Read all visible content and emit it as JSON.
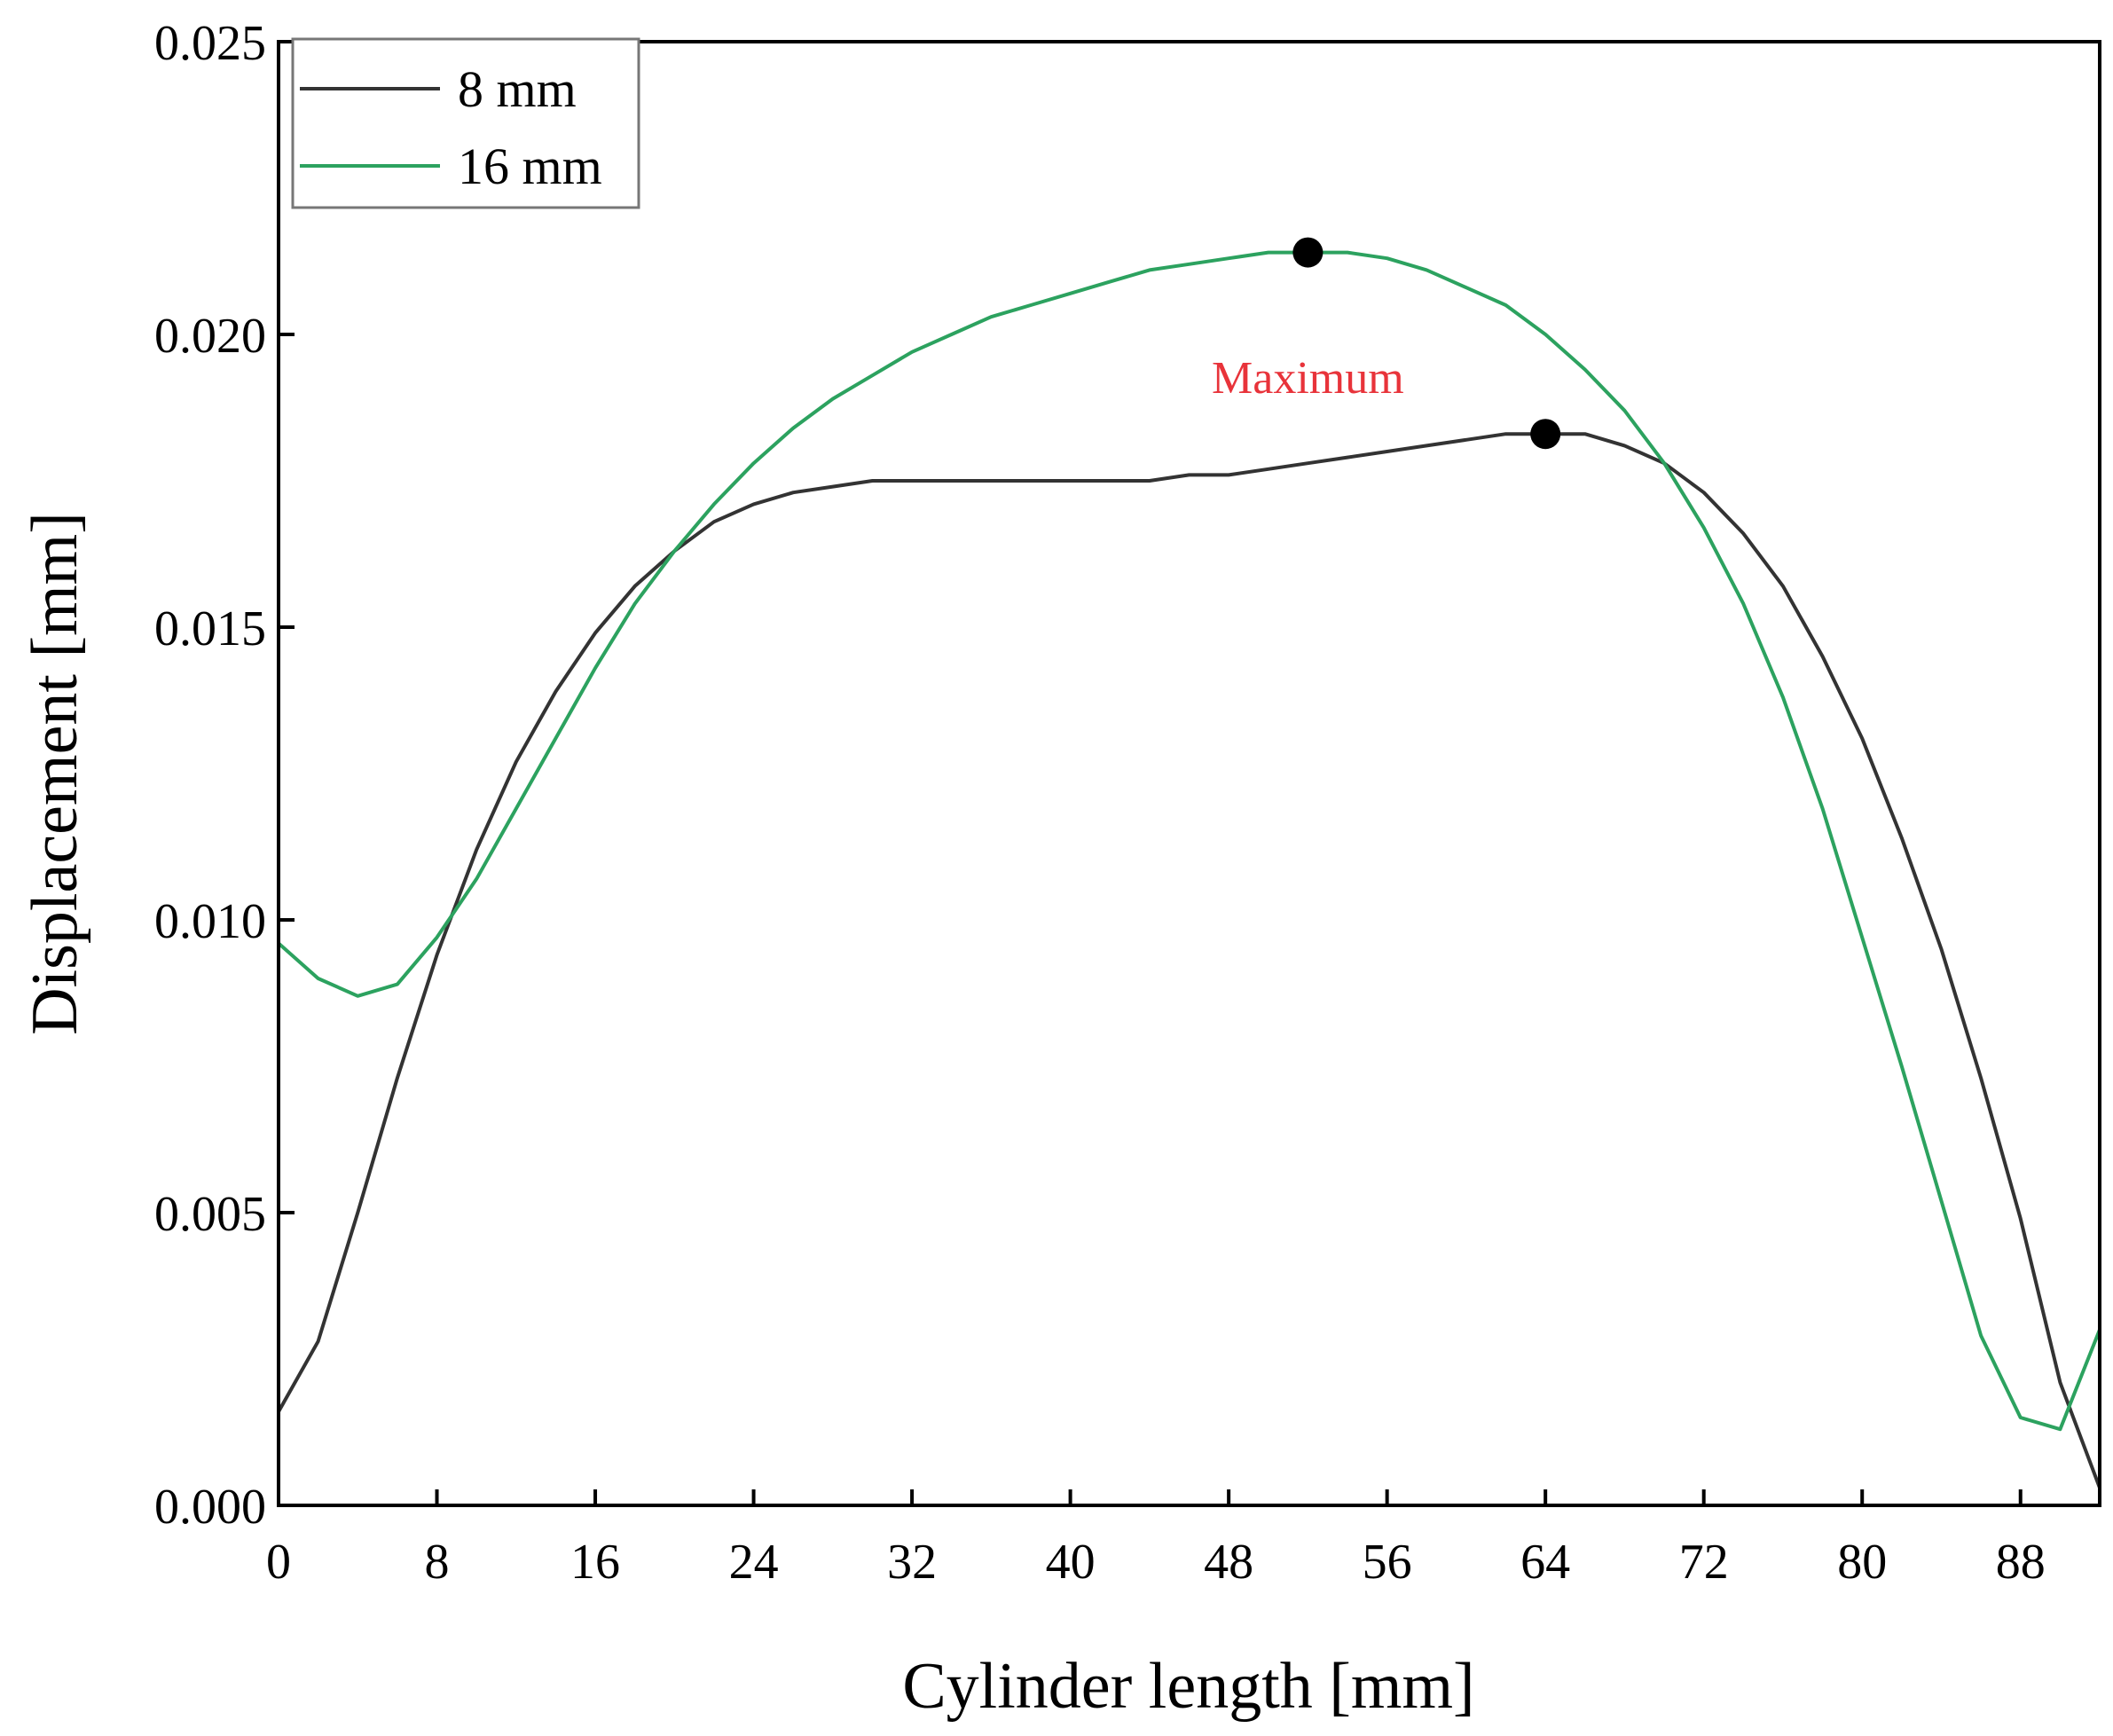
{
  "chart_data": {
    "type": "line",
    "title": "",
    "xlabel": "Cylinder length [mm]",
    "ylabel": "Displacement [mm]",
    "xlim": [
      0,
      92
    ],
    "ylim": [
      0,
      0.025
    ],
    "xticks": [
      0,
      8,
      16,
      24,
      32,
      40,
      48,
      56,
      64,
      72,
      80,
      88
    ],
    "yticks": [
      0,
      0.005,
      0.01,
      0.015,
      0.02,
      0.025
    ],
    "ytick_labels": [
      "0.000",
      "0.005",
      "0.010",
      "0.015",
      "0.020",
      "0.025"
    ],
    "grid": false,
    "legend_position": "top-left",
    "series": [
      {
        "name": "8 mm",
        "color": "#333333",
        "x": [
          0,
          2,
          4,
          6,
          8,
          10,
          12,
          14,
          16,
          18,
          20,
          22,
          24,
          26,
          28,
          30,
          32,
          34,
          36,
          38,
          40,
          42,
          44,
          46,
          48,
          50,
          52,
          54,
          56,
          58,
          60,
          62,
          64,
          66,
          68,
          70,
          72,
          74,
          76,
          78,
          80,
          82,
          84,
          86,
          88,
          90,
          92
        ],
        "y": [
          0.0016,
          0.0028,
          0.005,
          0.0073,
          0.0094,
          0.0112,
          0.0127,
          0.0139,
          0.0149,
          0.0157,
          0.0163,
          0.0168,
          0.0171,
          0.0173,
          0.0174,
          0.0175,
          0.0175,
          0.0175,
          0.0175,
          0.0175,
          0.0175,
          0.0175,
          0.0175,
          0.0176,
          0.0176,
          0.0177,
          0.0178,
          0.0179,
          0.018,
          0.0181,
          0.0182,
          0.0183,
          0.0183,
          0.0183,
          0.0181,
          0.0178,
          0.0173,
          0.0166,
          0.0157,
          0.0145,
          0.0131,
          0.0114,
          0.0095,
          0.0073,
          0.0049,
          0.0021,
          0.0003
        ]
      },
      {
        "name": "16 mm",
        "color": "#2ca25f",
        "x": [
          0,
          2,
          4,
          6,
          8,
          10,
          12,
          14,
          16,
          18,
          20,
          22,
          24,
          26,
          28,
          30,
          32,
          34,
          36,
          38,
          40,
          42,
          44,
          46,
          48,
          50,
          52,
          54,
          56,
          58,
          60,
          62,
          64,
          66,
          68,
          70,
          72,
          74,
          76,
          78,
          80,
          82,
          84,
          86,
          88,
          90,
          92
        ],
        "y": [
          0.0096,
          0.009,
          0.0087,
          0.0089,
          0.0097,
          0.0107,
          0.0119,
          0.0131,
          0.0143,
          0.0154,
          0.0163,
          0.0171,
          0.0178,
          0.0184,
          0.0189,
          0.0193,
          0.0197,
          0.02,
          0.0203,
          0.0205,
          0.0207,
          0.0209,
          0.0211,
          0.0212,
          0.0213,
          0.0214,
          0.0214,
          0.0214,
          0.0213,
          0.0211,
          0.0208,
          0.0205,
          0.02,
          0.0194,
          0.0187,
          0.0178,
          0.0167,
          0.0154,
          0.0138,
          0.0119,
          0.0097,
          0.0075,
          0.0052,
          0.0029,
          0.0015,
          0.0013,
          0.003
        ]
      }
    ],
    "markers": [
      {
        "series": "16 mm",
        "x": 52,
        "y": 0.0214
      },
      {
        "series": "8 mm",
        "x": 64,
        "y": 0.0183
      }
    ],
    "annotations": [
      {
        "text": "Maximum",
        "x": 52,
        "y": 0.019,
        "color": "#e8333a"
      }
    ]
  }
}
